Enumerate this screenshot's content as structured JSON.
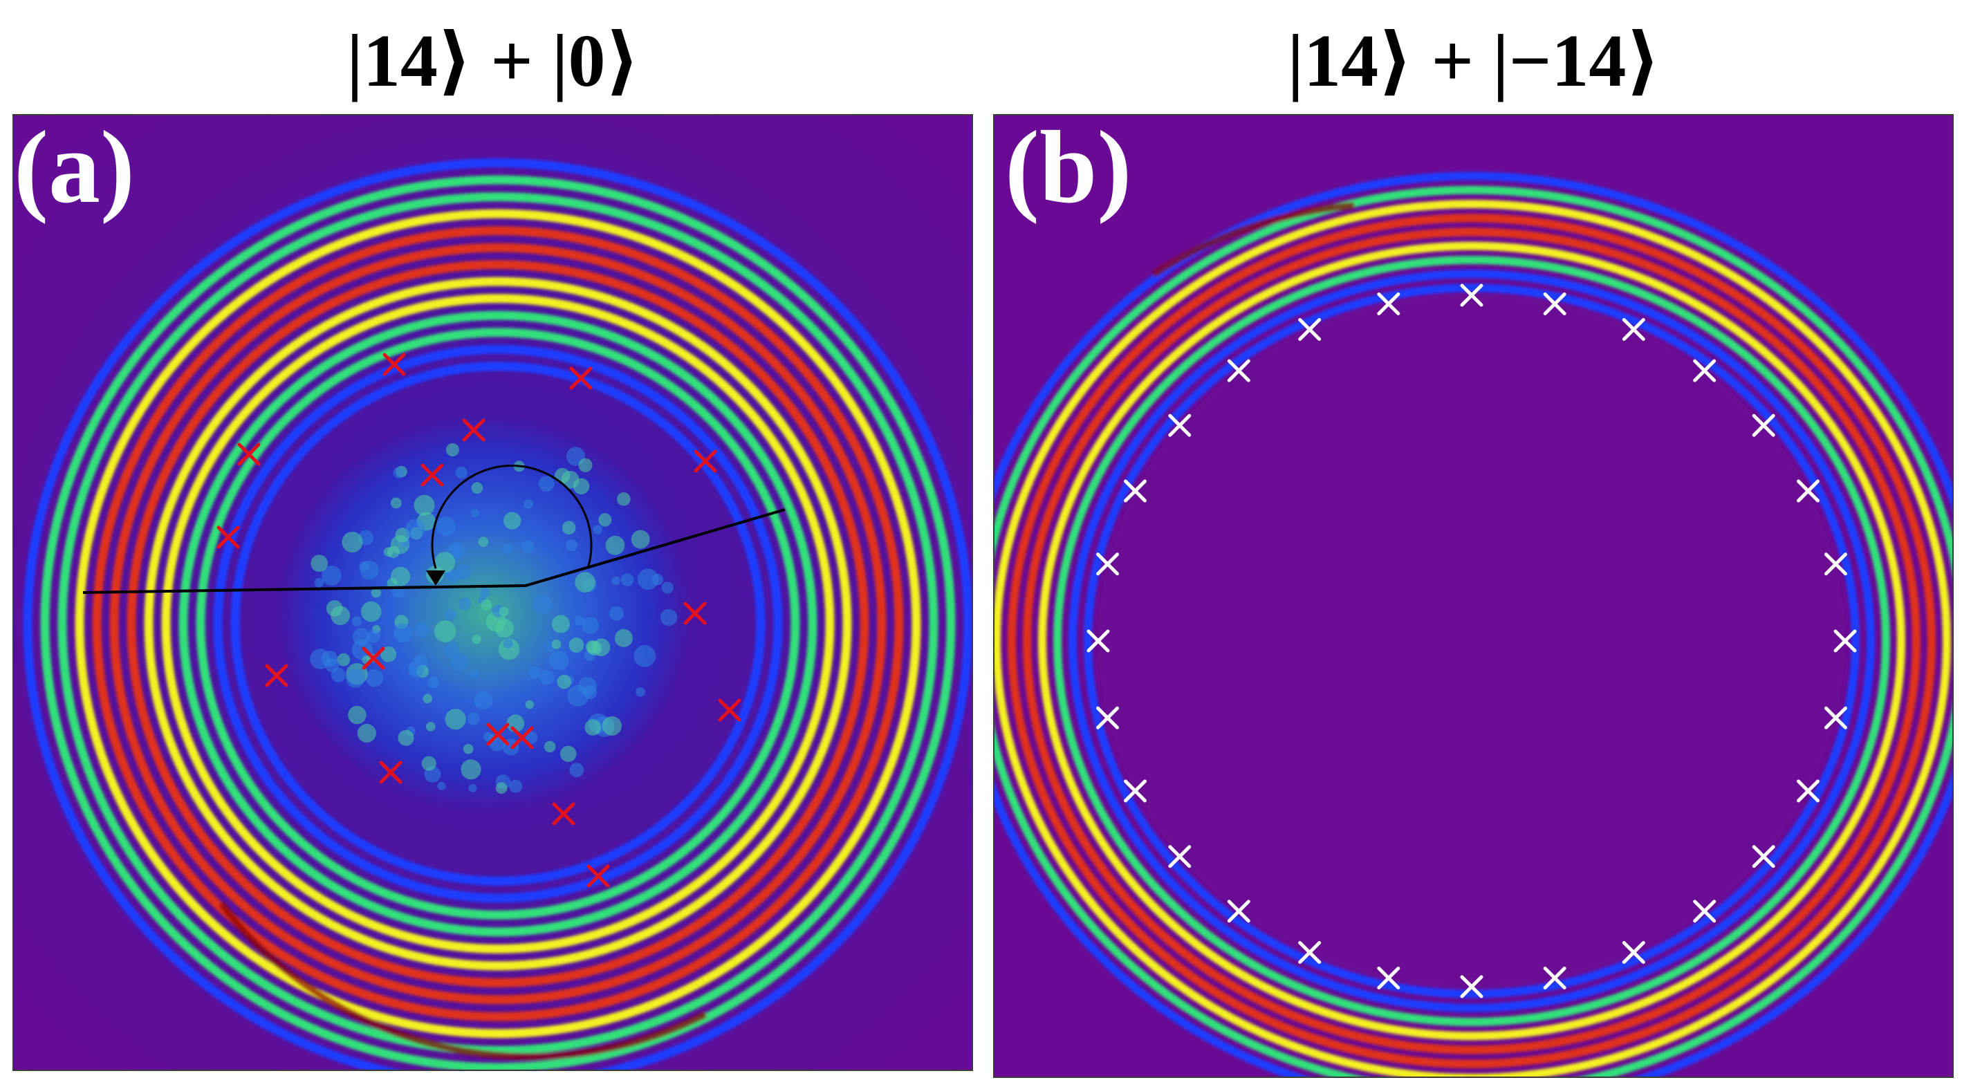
{
  "figure": {
    "panels": [
      {
        "id": "a",
        "title": "|14⟩ + |0⟩",
        "label": "(a)",
        "marker_color": "#e3111e",
        "marker_count": 16,
        "features": [
          "interference-ring-pattern",
          "speckle-core",
          "angle-arc-with-arrow",
          "reference-lines"
        ]
      },
      {
        "id": "b",
        "title": "|14⟩ + |−14⟩",
        "label": "(b)",
        "marker_color": "#ffffff",
        "marker_count": 28,
        "features": [
          "interference-ring-pattern",
          "dark-core"
        ]
      }
    ],
    "colors": {
      "background_purple": "#6a0a94",
      "blue": "#1f3cff",
      "green": "#33e07a",
      "yellow": "#f4f020",
      "red": "#e0301a",
      "dark_red": "#8a0000"
    }
  }
}
